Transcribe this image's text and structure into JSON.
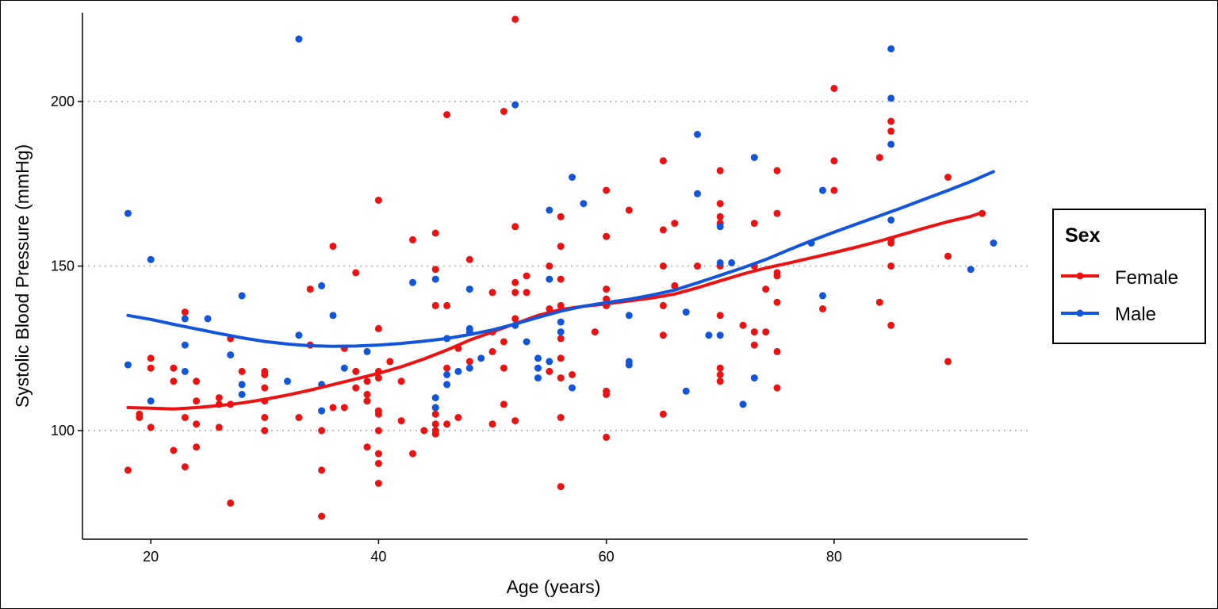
{
  "chart_data": {
    "type": "scatter",
    "title": "",
    "xlabel": "Age (years)",
    "ylabel": "Systolic Blood Pressure (mmHg)",
    "xlim": [
      14,
      97
    ],
    "ylim": [
      67,
      227
    ],
    "xticks": [
      20,
      40,
      60,
      80
    ],
    "yticks": [
      100,
      150,
      200
    ],
    "grid": "horizontal dotted at y ticks",
    "legend": {
      "title": "Sex",
      "placement": "right",
      "entries": [
        "Female",
        "Male"
      ]
    },
    "colors": {
      "Female": "#ee1111",
      "Male": "#1155dd"
    },
    "series": [
      {
        "name": "Female",
        "points": [
          [
            18,
            88
          ],
          [
            19,
            105
          ],
          [
            19,
            104
          ],
          [
            20,
            122
          ],
          [
            20,
            119
          ],
          [
            20,
            101
          ],
          [
            22,
            119
          ],
          [
            22,
            115
          ],
          [
            22,
            94
          ],
          [
            23,
            136
          ],
          [
            23,
            104
          ],
          [
            23,
            89
          ],
          [
            24,
            115
          ],
          [
            24,
            109
          ],
          [
            24,
            102
          ],
          [
            24,
            95
          ],
          [
            26,
            110
          ],
          [
            26,
            108
          ],
          [
            26,
            101
          ],
          [
            27,
            128
          ],
          [
            27,
            108
          ],
          [
            27,
            78
          ],
          [
            28,
            118
          ],
          [
            30,
            118
          ],
          [
            30,
            117
          ],
          [
            30,
            113
          ],
          [
            30,
            109
          ],
          [
            30,
            104
          ],
          [
            30,
            100
          ],
          [
            33,
            104
          ],
          [
            34,
            143
          ],
          [
            34,
            126
          ],
          [
            35,
            100
          ],
          [
            35,
            88
          ],
          [
            35,
            74
          ],
          [
            36,
            156
          ],
          [
            36,
            107
          ],
          [
            37,
            125
          ],
          [
            37,
            107
          ],
          [
            38,
            148
          ],
          [
            38,
            118
          ],
          [
            38,
            113
          ],
          [
            39,
            115
          ],
          [
            39,
            111
          ],
          [
            39,
            109
          ],
          [
            39,
            95
          ],
          [
            40,
            170
          ],
          [
            40,
            131
          ],
          [
            40,
            118
          ],
          [
            40,
            116
          ],
          [
            40,
            106
          ],
          [
            40,
            105
          ],
          [
            40,
            100
          ],
          [
            40,
            93
          ],
          [
            40,
            90
          ],
          [
            40,
            84
          ],
          [
            41,
            121
          ],
          [
            42,
            115
          ],
          [
            42,
            103
          ],
          [
            43,
            158
          ],
          [
            43,
            93
          ],
          [
            44,
            100
          ],
          [
            45,
            160
          ],
          [
            45,
            149
          ],
          [
            45,
            138
          ],
          [
            45,
            107
          ],
          [
            45,
            105
          ],
          [
            45,
            102
          ],
          [
            45,
            100
          ],
          [
            45,
            99
          ],
          [
            46,
            196
          ],
          [
            46,
            138
          ],
          [
            46,
            119
          ],
          [
            46,
            102
          ],
          [
            47,
            125
          ],
          [
            47,
            104
          ],
          [
            48,
            152
          ],
          [
            48,
            121
          ],
          [
            50,
            142
          ],
          [
            50,
            130
          ],
          [
            50,
            124
          ],
          [
            50,
            102
          ],
          [
            51,
            197
          ],
          [
            51,
            127
          ],
          [
            51,
            119
          ],
          [
            51,
            108
          ],
          [
            52,
            162
          ],
          [
            52,
            145
          ],
          [
            52,
            142
          ],
          [
            52,
            134
          ],
          [
            52,
            103
          ],
          [
            52,
            225
          ],
          [
            53,
            147
          ],
          [
            53,
            142
          ],
          [
            55,
            150
          ],
          [
            55,
            137
          ],
          [
            55,
            118
          ],
          [
            56,
            165
          ],
          [
            56,
            156
          ],
          [
            56,
            146
          ],
          [
            56,
            138
          ],
          [
            56,
            128
          ],
          [
            56,
            122
          ],
          [
            56,
            116
          ],
          [
            56,
            104
          ],
          [
            56,
            83
          ],
          [
            57,
            117
          ],
          [
            59,
            130
          ],
          [
            60,
            173
          ],
          [
            60,
            159
          ],
          [
            60,
            143
          ],
          [
            60,
            140
          ],
          [
            60,
            138
          ],
          [
            60,
            112
          ],
          [
            60,
            111
          ],
          [
            60,
            98
          ],
          [
            62,
            167
          ],
          [
            65,
            182
          ],
          [
            65,
            161
          ],
          [
            65,
            150
          ],
          [
            65,
            138
          ],
          [
            65,
            129
          ],
          [
            65,
            105
          ],
          [
            66,
            163
          ],
          [
            66,
            144
          ],
          [
            68,
            150
          ],
          [
            70,
            179
          ],
          [
            70,
            169
          ],
          [
            70,
            165
          ],
          [
            70,
            163
          ],
          [
            70,
            150
          ],
          [
            70,
            135
          ],
          [
            70,
            119
          ],
          [
            70,
            117
          ],
          [
            70,
            115
          ],
          [
            72,
            132
          ],
          [
            73,
            163
          ],
          [
            73,
            150
          ],
          [
            73,
            130
          ],
          [
            73,
            126
          ],
          [
            74,
            143
          ],
          [
            74,
            130
          ],
          [
            75,
            179
          ],
          [
            75,
            166
          ],
          [
            75,
            148
          ],
          [
            75,
            147
          ],
          [
            75,
            139
          ],
          [
            75,
            124
          ],
          [
            75,
            113
          ],
          [
            79,
            137
          ],
          [
            80,
            204
          ],
          [
            80,
            182
          ],
          [
            80,
            173
          ],
          [
            84,
            183
          ],
          [
            84,
            139
          ],
          [
            85,
            194
          ],
          [
            85,
            191
          ],
          [
            85,
            158
          ],
          [
            85,
            157
          ],
          [
            85,
            150
          ],
          [
            85,
            132
          ],
          [
            90,
            177
          ],
          [
            90,
            153
          ],
          [
            90,
            121
          ],
          [
            93,
            166
          ]
        ]
      },
      {
        "name": "Male",
        "points": [
          [
            18,
            166
          ],
          [
            18,
            120
          ],
          [
            20,
            152
          ],
          [
            20,
            109
          ],
          [
            23,
            134
          ],
          [
            23,
            126
          ],
          [
            23,
            118
          ],
          [
            25,
            134
          ],
          [
            27,
            123
          ],
          [
            28,
            141
          ],
          [
            28,
            114
          ],
          [
            28,
            111
          ],
          [
            32,
            115
          ],
          [
            33,
            219
          ],
          [
            33,
            129
          ],
          [
            35,
            144
          ],
          [
            35,
            114
          ],
          [
            35,
            106
          ],
          [
            36,
            135
          ],
          [
            37,
            119
          ],
          [
            39,
            124
          ],
          [
            43,
            145
          ],
          [
            45,
            146
          ],
          [
            45,
            110
          ],
          [
            45,
            107
          ],
          [
            46,
            128
          ],
          [
            46,
            117
          ],
          [
            46,
            114
          ],
          [
            47,
            118
          ],
          [
            48,
            143
          ],
          [
            48,
            131
          ],
          [
            48,
            130
          ],
          [
            48,
            119
          ],
          [
            49,
            122
          ],
          [
            52,
            199
          ],
          [
            52,
            132
          ],
          [
            53,
            127
          ],
          [
            54,
            122
          ],
          [
            54,
            119
          ],
          [
            54,
            116
          ],
          [
            55,
            167
          ],
          [
            55,
            146
          ],
          [
            55,
            121
          ],
          [
            56,
            133
          ],
          [
            56,
            130
          ],
          [
            57,
            177
          ],
          [
            57,
            113
          ],
          [
            58,
            169
          ],
          [
            62,
            121
          ],
          [
            62,
            120
          ],
          [
            62,
            135
          ],
          [
            67,
            136
          ],
          [
            67,
            112
          ],
          [
            68,
            190
          ],
          [
            68,
            172
          ],
          [
            69,
            129
          ],
          [
            70,
            162
          ],
          [
            70,
            151
          ],
          [
            70,
            129
          ],
          [
            71,
            151
          ],
          [
            72,
            108
          ],
          [
            73,
            183
          ],
          [
            73,
            116
          ],
          [
            78,
            157
          ],
          [
            79,
            173
          ],
          [
            79,
            141
          ],
          [
            85,
            216
          ],
          [
            85,
            201
          ],
          [
            85,
            187
          ],
          [
            85,
            164
          ],
          [
            92,
            149
          ],
          [
            94,
            157
          ]
        ]
      }
    ],
    "smooth": [
      {
        "name": "Female",
        "points": [
          [
            18,
            107
          ],
          [
            20,
            106.8
          ],
          [
            22,
            106.6
          ],
          [
            24,
            107
          ],
          [
            26,
            107.6
          ],
          [
            28,
            108.4
          ],
          [
            30,
            109.5
          ],
          [
            32,
            110.8
          ],
          [
            34,
            112.3
          ],
          [
            36,
            114
          ],
          [
            38,
            115.7
          ],
          [
            40,
            117.4
          ],
          [
            42,
            119.4
          ],
          [
            44,
            121.8
          ],
          [
            46,
            124.5
          ],
          [
            48,
            127.5
          ],
          [
            50,
            130
          ],
          [
            52,
            132.5
          ],
          [
            54,
            135
          ],
          [
            56,
            136.8
          ],
          [
            58,
            137.8
          ],
          [
            60,
            138.5
          ],
          [
            62,
            139.4
          ],
          [
            64,
            140.3
          ],
          [
            66,
            141.5
          ],
          [
            68,
            143.4
          ],
          [
            70,
            145.5
          ],
          [
            72,
            147.6
          ],
          [
            74,
            149.4
          ],
          [
            76,
            150.9
          ],
          [
            78,
            152.5
          ],
          [
            80,
            154.1
          ],
          [
            82,
            155.8
          ],
          [
            84,
            157.6
          ],
          [
            86,
            159.6
          ],
          [
            88,
            161.6
          ],
          [
            90,
            163.5
          ],
          [
            92,
            165.1
          ],
          [
            93,
            166.3
          ]
        ]
      },
      {
        "name": "Male",
        "points": [
          [
            18,
            135
          ],
          [
            20,
            133.8
          ],
          [
            22,
            132.3
          ],
          [
            24,
            130.9
          ],
          [
            26,
            129.5
          ],
          [
            28,
            128.2
          ],
          [
            30,
            127.1
          ],
          [
            32,
            126.3
          ],
          [
            34,
            125.8
          ],
          [
            36,
            125.6
          ],
          [
            38,
            125.7
          ],
          [
            40,
            126
          ],
          [
            42,
            126.5
          ],
          [
            44,
            127.2
          ],
          [
            46,
            128
          ],
          [
            48,
            129.2
          ],
          [
            50,
            130.6
          ],
          [
            52,
            132.4
          ],
          [
            54,
            134.4
          ],
          [
            56,
            136.3
          ],
          [
            58,
            137.8
          ],
          [
            60,
            138.9
          ],
          [
            62,
            139.9
          ],
          [
            64,
            141.2
          ],
          [
            66,
            142.7
          ],
          [
            68,
            144.9
          ],
          [
            70,
            147.2
          ],
          [
            72,
            149.5
          ],
          [
            74,
            152
          ],
          [
            76,
            154.9
          ],
          [
            78,
            157.7
          ],
          [
            80,
            160.3
          ],
          [
            82,
            162.8
          ],
          [
            84,
            165.3
          ],
          [
            86,
            167.8
          ],
          [
            88,
            170.4
          ],
          [
            90,
            173
          ],
          [
            92,
            175.7
          ],
          [
            94,
            178.7
          ]
        ]
      }
    ]
  }
}
